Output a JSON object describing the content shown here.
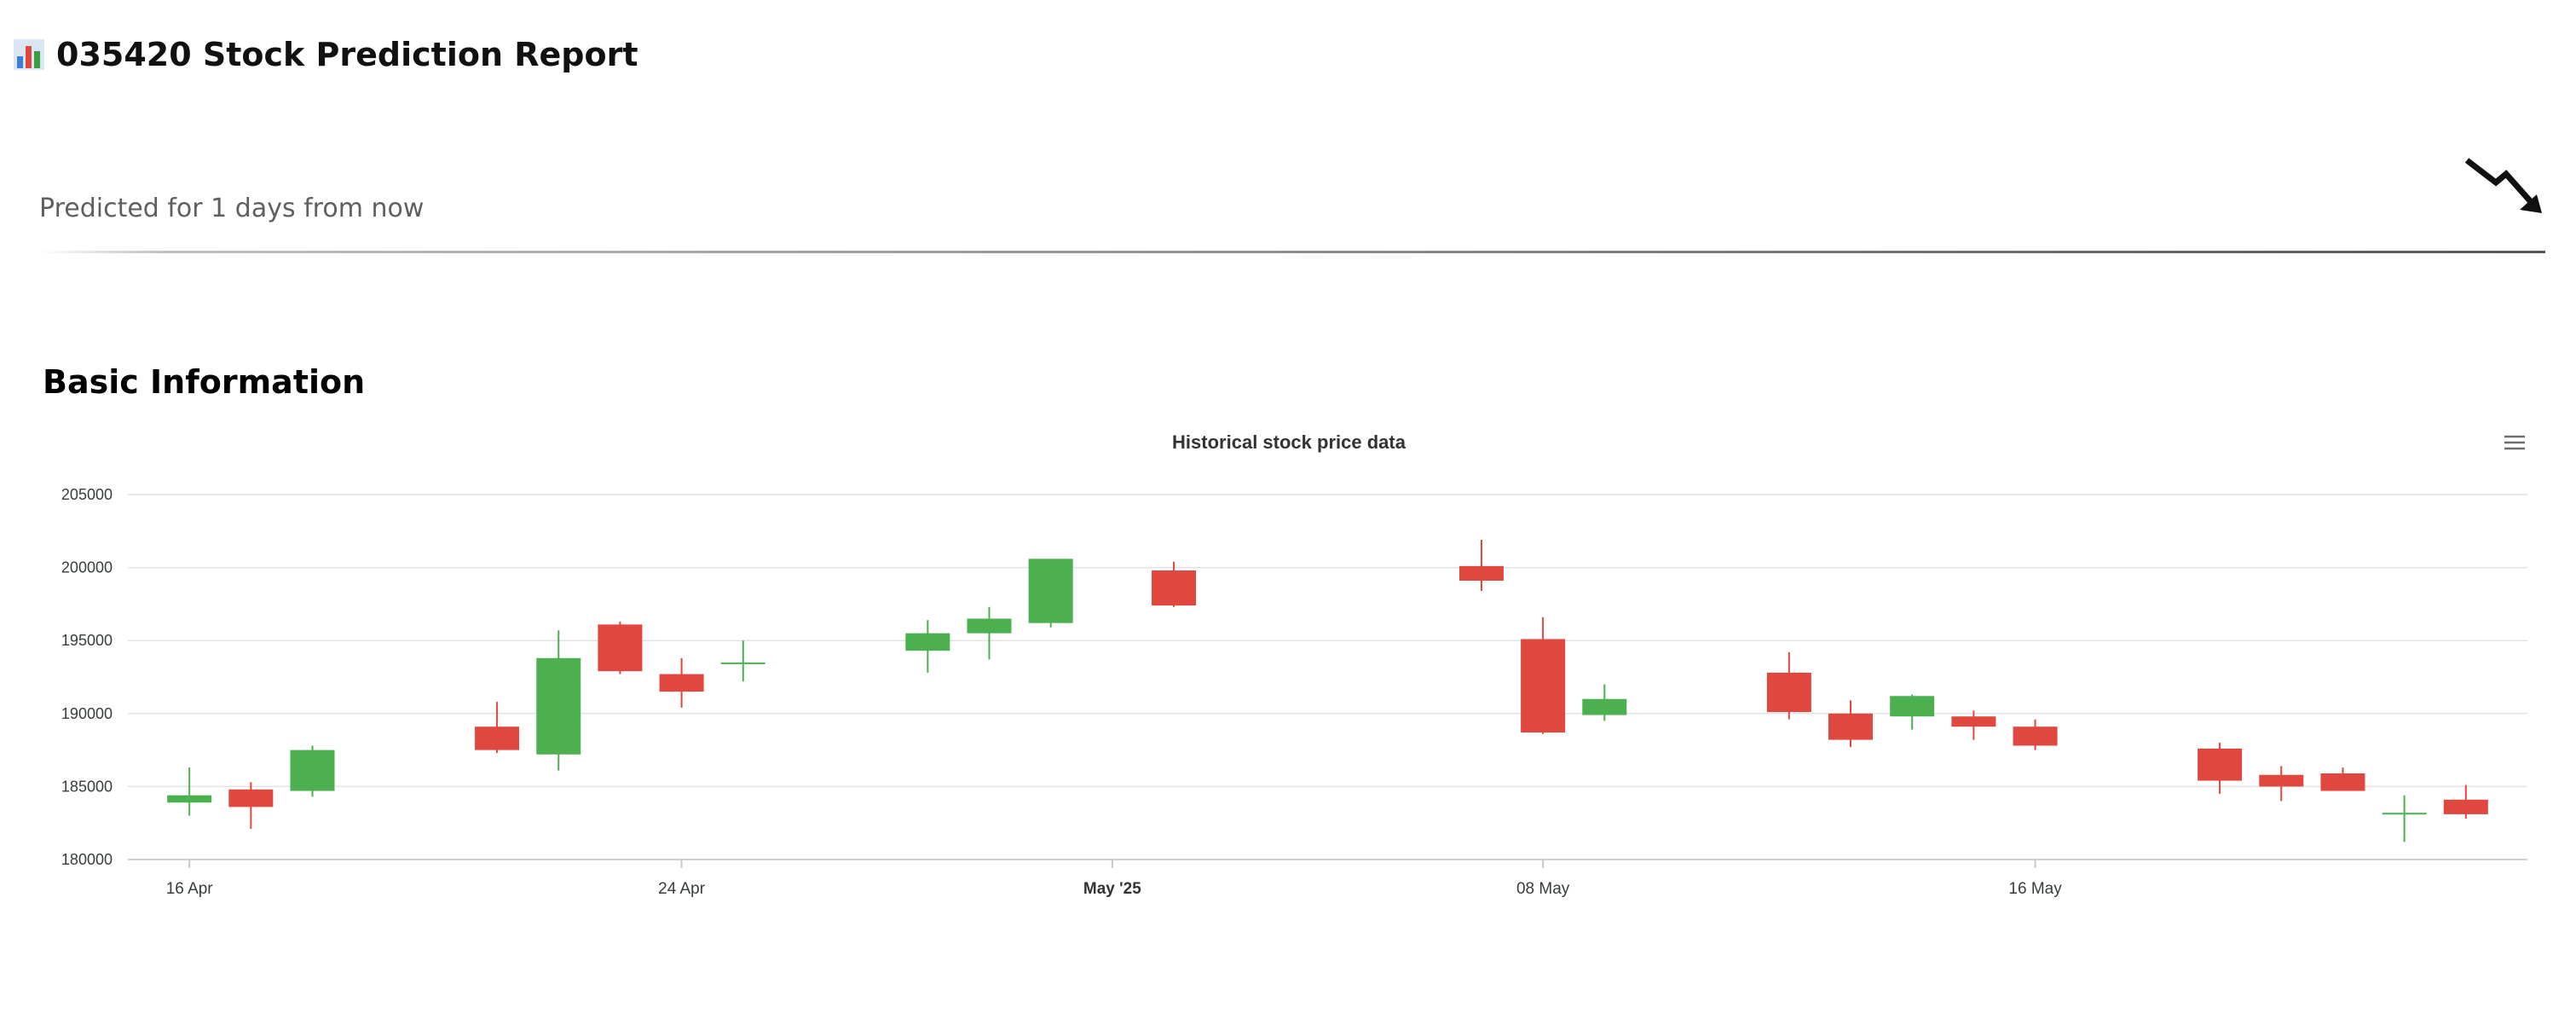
{
  "header": {
    "title": "035420 Stock Prediction Report",
    "icon": "bar-chart-icon"
  },
  "prediction": {
    "label": "Predicted for 1 days from now",
    "trend_icon": "trend-down-arrow-icon"
  },
  "basic_info": {
    "heading": "Basic Information"
  },
  "colors": {
    "up": "#4cb050",
    "down": "#e0473e"
  },
  "chart_data": {
    "type": "candlestick",
    "title": "Historical stock price data",
    "ylim": [
      180000,
      205000
    ],
    "y_ticks": [
      "205000",
      "200000",
      "195000",
      "190000",
      "185000",
      "180000"
    ],
    "x_ticks": [
      {
        "date": "2025-04-16",
        "label": "16 Apr",
        "bold": false
      },
      {
        "date": "2025-04-24",
        "label": "24 Apr",
        "bold": false
      },
      {
        "date": "2025-05-01",
        "label": "May '25",
        "bold": true
      },
      {
        "date": "2025-05-08",
        "label": "08 May",
        "bold": false
      },
      {
        "date": "2025-05-16",
        "label": "16 May",
        "bold": false
      }
    ],
    "grid": true,
    "candles": [
      {
        "date": "2025-04-16",
        "open": 183900,
        "high": 186300,
        "low": 183000,
        "close": 184400
      },
      {
        "date": "2025-04-17",
        "open": 184800,
        "high": 185300,
        "low": 182100,
        "close": 183600
      },
      {
        "date": "2025-04-18",
        "open": 184700,
        "high": 187800,
        "low": 184300,
        "close": 187500
      },
      {
        "date": "2025-04-21",
        "open": 189100,
        "high": 190800,
        "low": 187300,
        "close": 187500
      },
      {
        "date": "2025-04-22",
        "open": 187200,
        "high": 195700,
        "low": 186100,
        "close": 193800
      },
      {
        "date": "2025-04-23",
        "open": 196100,
        "high": 196300,
        "low": 192700,
        "close": 192900
      },
      {
        "date": "2025-04-24",
        "open": 192700,
        "high": 193800,
        "low": 190400,
        "close": 191500
      },
      {
        "date": "2025-04-25",
        "open": 193500,
        "high": 195000,
        "low": 192200,
        "close": 193500
      },
      {
        "date": "2025-04-28",
        "open": 194300,
        "high": 196400,
        "low": 192800,
        "close": 195500
      },
      {
        "date": "2025-04-29",
        "open": 195500,
        "high": 197300,
        "low": 193700,
        "close": 196500
      },
      {
        "date": "2025-04-30",
        "open": 196200,
        "high": 200600,
        "low": 195900,
        "close": 200600
      },
      {
        "date": "2025-05-02",
        "open": 199800,
        "high": 200400,
        "low": 197300,
        "close": 197400
      },
      {
        "date": "2025-05-07",
        "open": 200100,
        "high": 201900,
        "low": 198400,
        "close": 199100
      },
      {
        "date": "2025-05-08",
        "open": 195100,
        "high": 196600,
        "low": 188600,
        "close": 188700
      },
      {
        "date": "2025-05-09",
        "open": 189900,
        "high": 192000,
        "low": 189500,
        "close": 191000
      },
      {
        "date": "2025-05-12",
        "open": 192800,
        "high": 194200,
        "low": 189600,
        "close": 190100
      },
      {
        "date": "2025-05-13",
        "open": 190000,
        "high": 190900,
        "low": 187700,
        "close": 188200
      },
      {
        "date": "2025-05-14",
        "open": 189800,
        "high": 191300,
        "low": 188900,
        "close": 191200
      },
      {
        "date": "2025-05-15",
        "open": 189800,
        "high": 190200,
        "low": 188200,
        "close": 189100
      },
      {
        "date": "2025-05-16",
        "open": 189100,
        "high": 189600,
        "low": 187500,
        "close": 187800
      },
      {
        "date": "2025-05-19",
        "open": 187600,
        "high": 188000,
        "low": 184500,
        "close": 185400
      },
      {
        "date": "2025-05-20",
        "open": 185800,
        "high": 186400,
        "low": 184000,
        "close": 185000
      },
      {
        "date": "2025-05-21",
        "open": 185900,
        "high": 186300,
        "low": 184700,
        "close": 184700
      },
      {
        "date": "2025-05-22",
        "open": 183200,
        "high": 184400,
        "low": 181200,
        "close": 183200
      },
      {
        "date": "2025-05-23",
        "open": 184100,
        "high": 185100,
        "low": 182800,
        "close": 183100
      }
    ]
  }
}
